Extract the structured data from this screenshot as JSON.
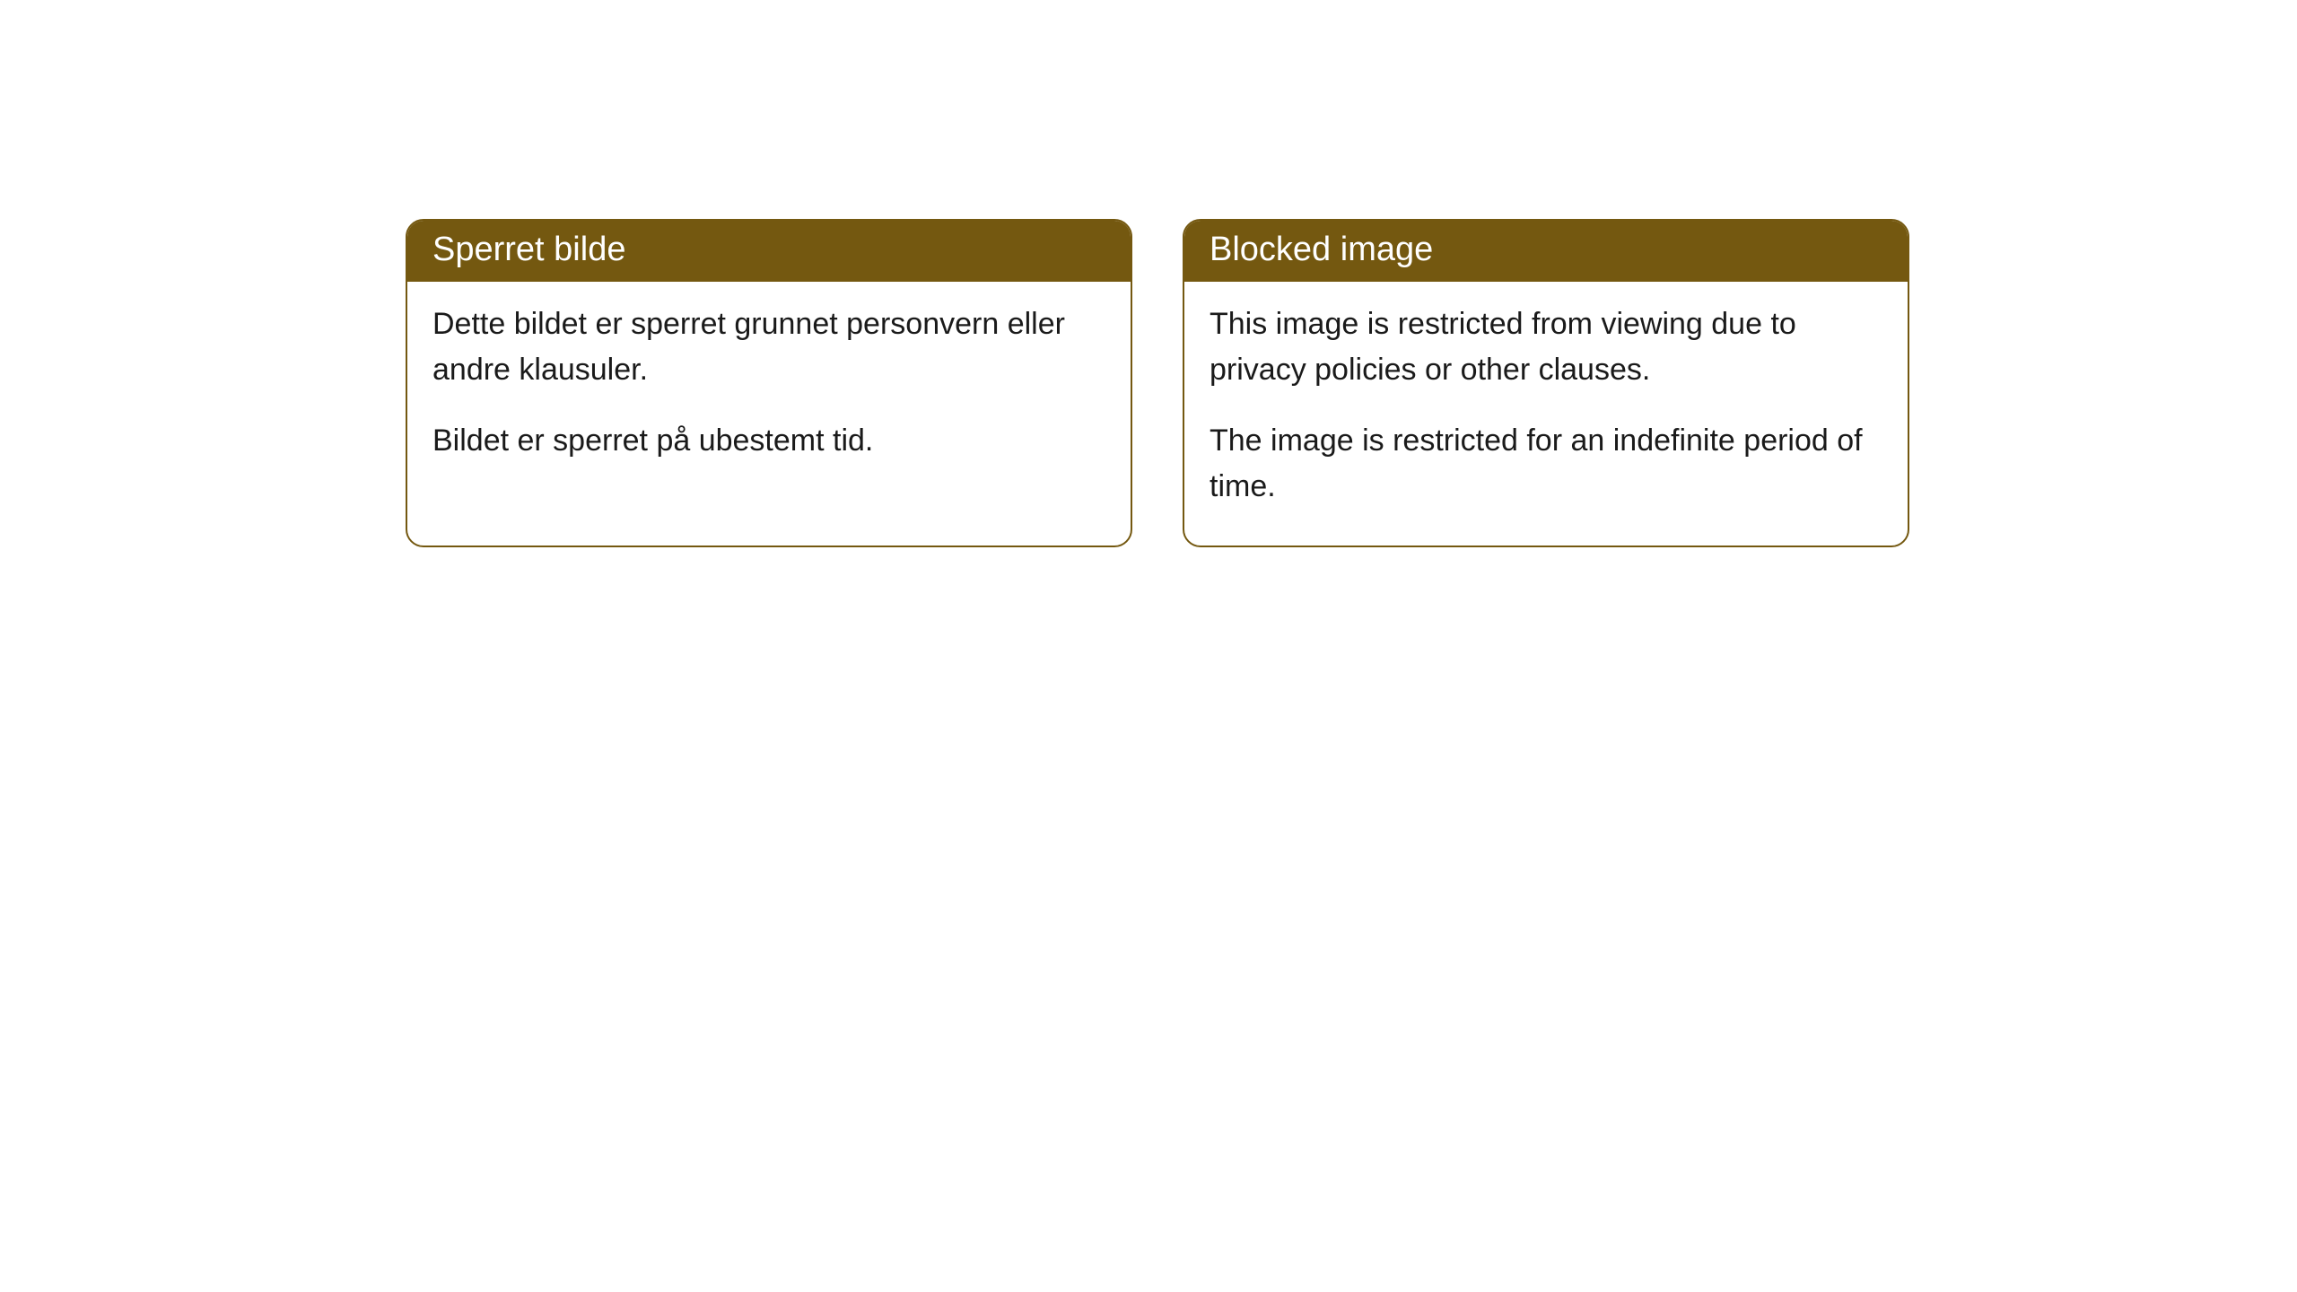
{
  "cards": [
    {
      "title": "Sperret bilde",
      "paragraph1": "Dette bildet er sperret grunnet personvern eller andre klausuler.",
      "paragraph2": "Bildet er sperret på ubestemt tid."
    },
    {
      "title": "Blocked image",
      "paragraph1": "This image is restricted from viewing due to privacy policies or other clauses.",
      "paragraph2": "The image is restricted for an indefinite period of time."
    }
  ],
  "styling": {
    "header_bg_color": "#745810",
    "header_text_color": "#ffffff",
    "border_color": "#745810",
    "body_text_color": "#1a1a1a",
    "card_bg_color": "#ffffff",
    "page_bg_color": "#ffffff",
    "border_radius": 20,
    "header_fontsize": 38,
    "body_fontsize": 34
  }
}
